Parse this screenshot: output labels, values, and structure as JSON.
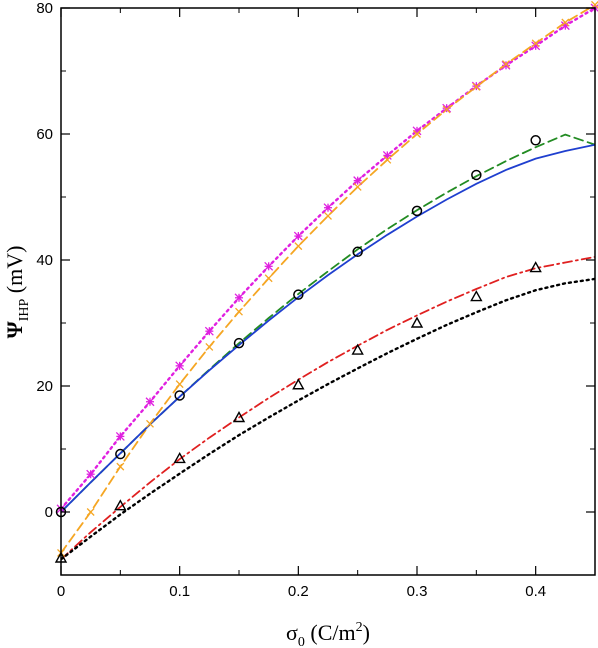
{
  "chart_data": {
    "type": "line",
    "xlabel": {
      "base": "σ",
      "sub": "0",
      "unit_prefix": " (C/m",
      "unit_sup": "2",
      "unit_suffix": ")"
    },
    "ylabel": {
      "base": "Ψ",
      "sub": "IHP",
      "unit": " (mV)"
    },
    "xlim": [
      0,
      0.45
    ],
    "ylim": [
      -10,
      80
    ],
    "x_ticks": [
      "0",
      "0.1",
      "0.2",
      "0.3",
      "0.4"
    ],
    "x_tick_values": [
      0,
      0.1,
      0.2,
      0.3,
      0.4
    ],
    "y_ticks": [
      "0",
      "20",
      "40",
      "60",
      "80"
    ],
    "y_tick_values": [
      0,
      20,
      40,
      60,
      80
    ],
    "grid": false,
    "series": [
      {
        "style": "dotted",
        "color": "#e020e0",
        "marker": "asterisk",
        "x": [
          0,
          0.025,
          0.05,
          0.075,
          0.1,
          0.125,
          0.15,
          0.175,
          0.2,
          0.225,
          0.25,
          0.275,
          0.3,
          0.325,
          0.35,
          0.375,
          0.4,
          0.425,
          0.45
        ],
        "y": [
          0.5,
          6.0,
          12.0,
          17.5,
          23.2,
          28.7,
          34.0,
          39.0,
          43.8,
          48.3,
          52.6,
          56.6,
          60.5,
          64.1,
          67.6,
          70.9,
          74.0,
          77.2,
          80.0
        ]
      },
      {
        "style": "dashed",
        "color": "#f5a623",
        "marker": "x",
        "x": [
          0,
          0.025,
          0.05,
          0.075,
          0.1,
          0.125,
          0.15,
          0.175,
          0.2,
          0.225,
          0.25,
          0.275,
          0.3,
          0.325,
          0.35,
          0.375,
          0.4,
          0.425,
          0.45
        ],
        "y": [
          -6.5,
          0.0,
          7.2,
          14.0,
          20.3,
          26.2,
          31.8,
          37.1,
          42.2,
          47.0,
          51.6,
          55.9,
          60.0,
          63.9,
          67.5,
          71.1,
          74.4,
          77.7,
          80.5
        ]
      },
      {
        "style": "dashed",
        "color": "#228b22",
        "marker": "none",
        "x": [
          0,
          0.025,
          0.05,
          0.075,
          0.1,
          0.125,
          0.15,
          0.175,
          0.2,
          0.225,
          0.25,
          0.275,
          0.3,
          0.325,
          0.35,
          0.375,
          0.4,
          0.425,
          0.45
        ],
        "y": [
          0.0,
          4.7,
          9.3,
          13.9,
          18.3,
          22.6,
          26.8,
          30.8,
          34.6,
          38.2,
          41.7,
          44.9,
          47.9,
          50.7,
          53.3,
          55.7,
          57.9,
          59.9,
          58.3
        ]
      },
      {
        "style": "solid",
        "color": "#1f3fcf",
        "marker": "none",
        "x": [
          0,
          0.025,
          0.05,
          0.075,
          0.1,
          0.125,
          0.15,
          0.175,
          0.2,
          0.225,
          0.25,
          0.275,
          0.3,
          0.325,
          0.35,
          0.375,
          0.4,
          0.425,
          0.45
        ],
        "y": [
          0.0,
          4.7,
          9.3,
          13.9,
          18.3,
          22.5,
          26.5,
          30.4,
          34.1,
          37.6,
          40.9,
          44.0,
          46.9,
          49.6,
          52.1,
          54.3,
          56.1,
          57.3,
          58.3
        ]
      },
      {
        "style": "dashdot",
        "color": "#e02020",
        "marker": "none",
        "x": [
          0,
          0.025,
          0.05,
          0.075,
          0.1,
          0.125,
          0.15,
          0.175,
          0.2,
          0.225,
          0.25,
          0.275,
          0.3,
          0.325,
          0.35,
          0.375,
          0.4,
          0.425,
          0.45
        ],
        "y": [
          -7.5,
          -3.2,
          0.8,
          4.7,
          8.4,
          11.8,
          15.0,
          18.1,
          21.0,
          23.8,
          26.4,
          28.9,
          31.2,
          33.4,
          35.4,
          37.3,
          38.7,
          39.6,
          40.5
        ]
      },
      {
        "style": "dotted",
        "color": "#000000",
        "marker": "none",
        "x": [
          0,
          0.025,
          0.05,
          0.075,
          0.1,
          0.125,
          0.15,
          0.175,
          0.2,
          0.225,
          0.25,
          0.275,
          0.3,
          0.325,
          0.35,
          0.375,
          0.4,
          0.425,
          0.45
        ],
        "y": [
          -7.5,
          -3.9,
          -0.4,
          2.9,
          6.1,
          9.2,
          12.2,
          15.0,
          17.7,
          20.3,
          22.8,
          25.2,
          27.5,
          29.7,
          31.7,
          33.6,
          35.2,
          36.3,
          37.0
        ]
      },
      {
        "style": "none",
        "color": "#000000",
        "marker": "circle",
        "x": [
          0,
          0.05,
          0.1,
          0.15,
          0.2,
          0.25,
          0.3,
          0.35,
          0.4
        ],
        "y": [
          0.0,
          9.2,
          18.5,
          26.8,
          34.5,
          41.3,
          47.8,
          53.5,
          59.0
        ]
      },
      {
        "style": "none",
        "color": "#000000",
        "marker": "triangle",
        "x": [
          0,
          0.05,
          0.1,
          0.15,
          0.2,
          0.25,
          0.3,
          0.35,
          0.4
        ],
        "y": [
          -7.3,
          1.0,
          8.5,
          15.0,
          20.2,
          25.7,
          30.0,
          34.2,
          38.8
        ]
      }
    ]
  }
}
